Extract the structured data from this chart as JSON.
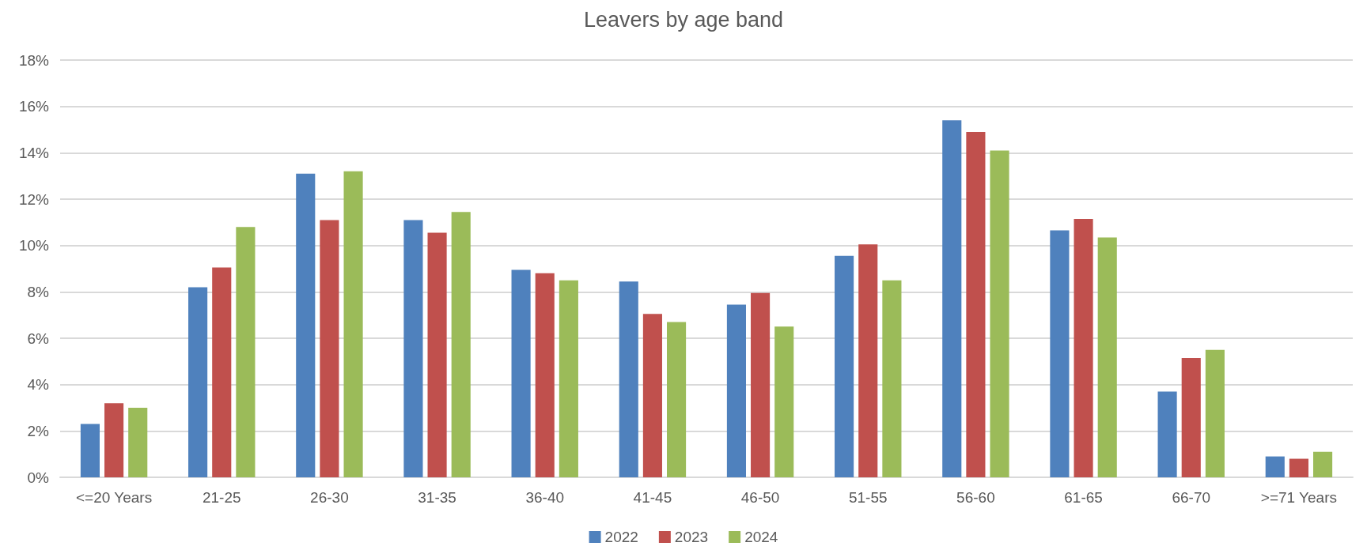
{
  "chart_data": {
    "type": "bar",
    "title": "Leavers by age band",
    "categories": [
      "<=20 Years",
      "21-25",
      "26-30",
      "31-35",
      "36-40",
      "41-45",
      "46-50",
      "51-55",
      "56-60",
      "61-65",
      "66-70",
      ">=71 Years"
    ],
    "series": [
      {
        "name": "2022",
        "color": "#4f81bd",
        "values": [
          2.3,
          8.2,
          13.1,
          11.1,
          8.95,
          8.45,
          7.45,
          9.55,
          15.4,
          10.65,
          3.7,
          0.9
        ]
      },
      {
        "name": "2023",
        "color": "#c0504d",
        "values": [
          3.2,
          9.05,
          11.1,
          10.55,
          8.8,
          7.05,
          7.95,
          10.05,
          14.9,
          11.15,
          5.15,
          0.8
        ]
      },
      {
        "name": "2024",
        "color": "#9bbb59",
        "values": [
          3.0,
          10.8,
          13.2,
          11.45,
          8.5,
          6.7,
          6.5,
          8.5,
          14.1,
          10.35,
          5.5,
          1.1
        ]
      }
    ],
    "ylim": [
      0,
      18
    ],
    "yticks": [
      {
        "value": 0,
        "label": "0%"
      },
      {
        "value": 2,
        "label": "2%"
      },
      {
        "value": 4,
        "label": "4%"
      },
      {
        "value": 6,
        "label": "6%"
      },
      {
        "value": 8,
        "label": "8%"
      },
      {
        "value": 10,
        "label": "10%"
      },
      {
        "value": 12,
        "label": "12%"
      },
      {
        "value": 14,
        "label": "14%"
      },
      {
        "value": 16,
        "label": "16%"
      },
      {
        "value": 18,
        "label": "18%"
      }
    ],
    "grid": "y",
    "legend": "bottom"
  }
}
